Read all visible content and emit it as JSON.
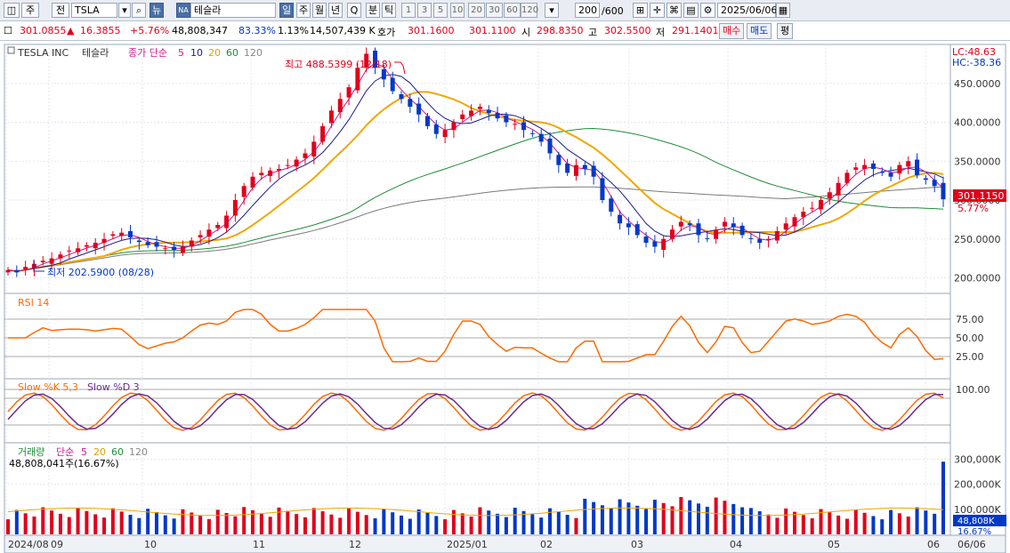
{
  "toolbar": {
    "period": "주",
    "prev": "전",
    "symbol": "TSLA",
    "news": "뉴",
    "badge": "NA",
    "name": "테슬라",
    "tabs": [
      "일",
      "주",
      "월",
      "년",
      "Q",
      "분",
      "틱"
    ],
    "nums": [
      "1",
      "3",
      "5",
      "10",
      "20",
      "30",
      "60",
      "120"
    ],
    "count": "200",
    "total": "/600",
    "date": "2025/06/06"
  },
  "quote": {
    "price": "301.0855",
    "change_sign": "▲",
    "change": "16.3855",
    "change_pct": "+5.76%",
    "volume": "48,808,347",
    "vol_ratio": "83.33%",
    "turnover_rate": "1.13%",
    "amount": "14,507,439 K",
    "ask_label": "호가",
    "ask": "301.1600",
    "bid": "301.1100",
    "open_label": "시",
    "open": "298.8350",
    "high_label": "고",
    "high": "302.5500",
    "low_label": "저",
    "low": "291.1401",
    "buy": "매수",
    "sell": "매도",
    "eval": "평"
  },
  "price_panel": {
    "name": "TESLA INC",
    "kr_name": "테슬라",
    "ma_title": "종가 단순",
    "ma_periods": [
      "5",
      "10",
      "20",
      "60",
      "120"
    ],
    "lc": "LC:48.63",
    "hc": "HC:-38.36",
    "high_note": "최고 488.5399 (12/18)",
    "low_note": "최저 202.5900 (08/28)",
    "last_price": "301.1150",
    "last_pct": "5.77%",
    "y_ticks": [
      "450.0000",
      "400.0000",
      "350.0000",
      "300.0000",
      "250.0000",
      "200.0000"
    ]
  },
  "rsi_panel": {
    "title": "RSI 14",
    "y_ticks": [
      "75.00",
      "50.00",
      "25.00"
    ]
  },
  "stoch_panel": {
    "title_k": "Slow %K 5,3",
    "title_d": "Slow %D 3",
    "y_ticks": [
      "100.00"
    ]
  },
  "volume_panel": {
    "title": "거래량",
    "ma_title": "단순",
    "ma_periods": [
      "5",
      "20",
      "60",
      "120"
    ],
    "current": "48,808,041주(16.67%)",
    "y_ticks": [
      "300,000K",
      "200,000K",
      "100,000K"
    ],
    "last": "48,808K",
    "last_pct": "16.67%"
  },
  "x_axis": [
    "2024/08",
    "09",
    "10",
    "11",
    "12",
    "2025/01",
    "02",
    "03",
    "04",
    "05",
    "06",
    "06/06"
  ],
  "colors": {
    "up": "#e0001b",
    "down": "#0038c8",
    "ma5": "#d0198c",
    "ma10": "#1d1d8f",
    "ma20": "#f0a800",
    "ma60": "#1f8c3a",
    "ma120": "#7a7a7a",
    "rsi": "#ff6a00",
    "stoch_k": "#ff6a00",
    "stoch_d": "#6b2a8c"
  },
  "chart_data": [
    {
      "type": "line",
      "title": "TESLA INC 테슬라 daily candles",
      "series": [
        {
          "name": "close",
          "values": [
            210,
            207,
            214,
            218,
            222,
            225,
            230,
            235,
            238,
            242,
            245,
            250,
            256,
            258,
            252,
            246,
            242,
            240,
            238,
            236,
            240,
            248,
            255,
            262,
            268,
            280,
            300,
            318,
            330,
            335,
            338,
            340,
            345,
            352,
            360,
            375,
            395,
            415,
            430,
            445,
            470,
            488,
            470,
            455,
            440,
            430,
            420,
            410,
            395,
            385,
            390,
            400,
            410,
            415,
            420,
            412,
            405,
            400,
            398,
            390,
            385,
            375,
            360,
            345,
            335,
            345,
            340,
            330,
            300,
            285,
            270,
            265,
            255,
            245,
            240,
            250,
            262,
            272,
            268,
            255,
            250,
            262,
            272,
            265,
            255,
            250,
            245,
            250,
            260,
            270,
            278,
            285,
            290,
            300,
            310,
            322,
            335,
            342,
            345,
            340,
            335,
            330,
            345,
            350,
            332,
            326,
            318,
            301
          ]
        }
      ]
    }
  ]
}
